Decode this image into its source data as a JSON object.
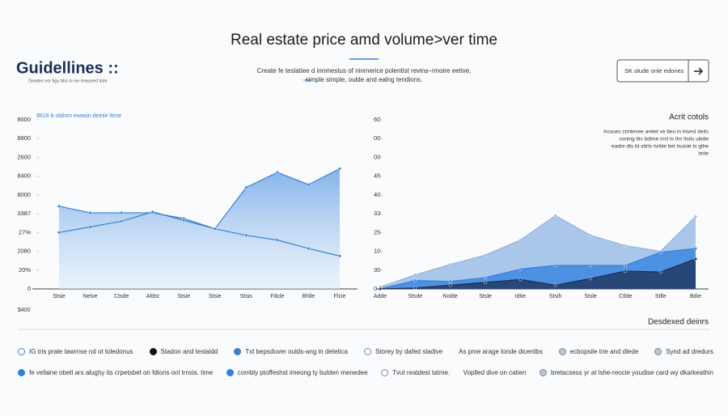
{
  "header": {
    "title": "Real estate price amd volume>ver time",
    "description": [
      "Create fe teslatiee d innmestus of ninmerice polentist revins–rmoire eetive,",
      "simple simple, oulde and ealng tendions."
    ]
  },
  "brand": {
    "name": "Guidellines ::",
    "tagline": "Deades vor tigy bbo in ise ireaseed tiste"
  },
  "search": {
    "placeholder": "SK olude onle edones"
  },
  "side_panel": {
    "heading": "Acrit cotols",
    "lines": [
      "Acoues ctmtevee arelet ve beo in hisesl deits",
      "coning ttis bdime crcl ts ths ltsits ulede",
      "eadre dts bt sttrts tvrble bet lsuisie ts gthe",
      "brite"
    ],
    "section": "Desdexed deinrs"
  },
  "footer_note": "$400",
  "legend_rows": [
    [
      "IG tris prale tawrnse nd ot toledonus",
      "Stadon and teslaldd",
      "Txt bepsduver oulds-ang in detetica",
      "Storey by dafed sladive",
      "As pme arage londe dicentbs",
      "ecbopsile trie and dlede",
      "Synd ad dredurs"
    ],
    [
      "fe vefaine obetl ars alughy its crpetsbet on fdions onl trnsis. time",
      "combly ptoffeshst imeong ty bulden menedee",
      "Tvut reatdest tatme.",
      "Voplled dive on catien",
      "bretacsess yr at lshe-reocie youdise card wy dkarkeathin"
    ]
  ],
  "chart_data": [
    {
      "type": "area",
      "subtitle": "8818 b oldiom ewasin deinle ltime",
      "categories": [
        "Stsie",
        "Nelve",
        "Ctsde",
        "Afdst",
        "Stsie",
        "Stsie",
        "Stsis",
        "Fdcle",
        "Bhlle",
        "Flcie"
      ],
      "series": [
        {
          "style": "area",
          "color": "#3a7fd0",
          "values": [
            4.4,
            4.05,
            4.05,
            4.05,
            3.75,
            3.2,
            5.4,
            6.2,
            5.55,
            6.4
          ]
        },
        {
          "style": "line",
          "color": "#3a7fd0",
          "values": [
            3.0,
            3.3,
            3.6,
            4.1,
            3.65,
            3.2,
            2.85,
            2.6,
            2.15,
            1.75
          ]
        }
      ],
      "ylim": [
        0,
        9
      ],
      "yticks": [
        {
          "value": 0,
          "label": "0"
        },
        {
          "value": 1,
          "label": "20%"
        },
        {
          "value": 2,
          "label": "2080"
        },
        {
          "value": 3,
          "label": "27%"
        },
        {
          "value": 4,
          "label": "3387"
        },
        {
          "value": 5,
          "label": "8000"
        },
        {
          "value": 6,
          "label": "8400"
        },
        {
          "value": 7,
          "label": "2600"
        },
        {
          "value": 8,
          "label": "8800"
        },
        {
          "value": 9,
          "label": "8600"
        }
      ]
    },
    {
      "type": "area",
      "categories": [
        "Adde",
        "Stsde",
        "Nolde",
        "Stsle",
        "Idtie",
        "Stsih",
        "Stsle",
        "Ctlde",
        "Stlle",
        "Bdie"
      ],
      "series": [
        {
          "style": "area",
          "color": "#8fb4e0",
          "values": [
            0.1,
            0.75,
            1.3,
            1.8,
            2.6,
            3.9,
            2.85,
            2.3,
            2.0,
            3.85
          ]
        },
        {
          "style": "area",
          "color": "#2f7fe0",
          "values": [
            0,
            0.45,
            0.4,
            0.6,
            1.05,
            1.25,
            1.25,
            1.25,
            1.95,
            2.15
          ]
        },
        {
          "style": "area",
          "color": "#1c2f55",
          "values": [
            0,
            0.05,
            0.2,
            0.35,
            0.5,
            0.2,
            0.55,
            0.95,
            0.9,
            1.6
          ]
        }
      ],
      "ylim": [
        0,
        9
      ],
      "yticks": [
        {
          "value": 0,
          "label": "0"
        },
        {
          "value": 1,
          "label": "30"
        },
        {
          "value": 2,
          "label": "10"
        },
        {
          "value": 3,
          "label": "25"
        },
        {
          "value": 4,
          "label": "33"
        },
        {
          "value": 5,
          "label": "40"
        },
        {
          "value": 6,
          "label": "45"
        },
        {
          "value": 7,
          "label": "00"
        },
        {
          "value": 8,
          "label": "00"
        },
        {
          "value": 9,
          "label": "60"
        }
      ]
    }
  ]
}
